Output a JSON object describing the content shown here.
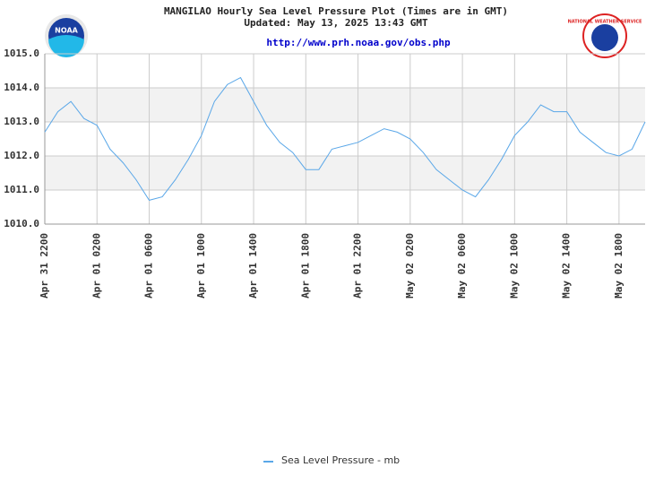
{
  "logos": {
    "left": "NOAA",
    "right": "NATIONAL WEATHER SERVICE"
  },
  "chart_data": {
    "type": "line",
    "title": "MANGILAO Hourly Sea Level Pressure Plot (Times are in GMT)",
    "subtitle": "Updated: May 13, 2025 13:43 GMT",
    "url": "http://www.prh.noaa.gov/obs.php",
    "categories": [
      "Apr 31 2200",
      null,
      null,
      null,
      "Apr 01 0200",
      null,
      null,
      null,
      "Apr 01 0600",
      null,
      null,
      null,
      "Apr 01 1000",
      null,
      null,
      null,
      "Apr 01 1400",
      null,
      null,
      null,
      "Apr 01 1800",
      null,
      null,
      null,
      "Apr 01 2200",
      null,
      null,
      null,
      "May 02 0200",
      null,
      null,
      null,
      "May 02 0600",
      null,
      null,
      null,
      "May 02 1000",
      null,
      null,
      null,
      "May 02 1400",
      null,
      null,
      null,
      "May 02 1800",
      null,
      null
    ],
    "series": [
      {
        "name": "Sea Level Pressure - mb",
        "color": "#5aa7e8",
        "values": [
          1012.7,
          1013.3,
          1013.6,
          1013.1,
          1012.9,
          1012.2,
          1011.8,
          1011.3,
          1010.7,
          1010.8,
          1011.3,
          1011.9,
          1012.6,
          1013.6,
          1014.1,
          1014.3,
          1013.6,
          1012.9,
          1012.4,
          1012.1,
          1011.6,
          1011.6,
          1012.2,
          1012.3,
          1012.4,
          1012.6,
          1012.8,
          1012.7,
          1012.5,
          1012.1,
          1011.6,
          1011.3,
          1011.0,
          1010.8,
          1011.3,
          1011.9,
          1012.6,
          1013.0,
          1013.5,
          1013.3,
          1013.3,
          1012.7,
          1012.4,
          1012.1,
          1012.0,
          1012.2,
          1013.0
        ]
      }
    ],
    "ylim": [
      1010,
      1015
    ],
    "yticks": [
      {
        "value": 1010,
        "label": "1010.0"
      },
      {
        "value": 1011,
        "label": "1011.0"
      },
      {
        "value": 1012,
        "label": "1012.0"
      },
      {
        "value": 1013,
        "label": "1013.0"
      },
      {
        "value": 1014,
        "label": "1014.0"
      },
      {
        "value": 1015,
        "label": "1015.0"
      }
    ],
    "grid": true
  }
}
